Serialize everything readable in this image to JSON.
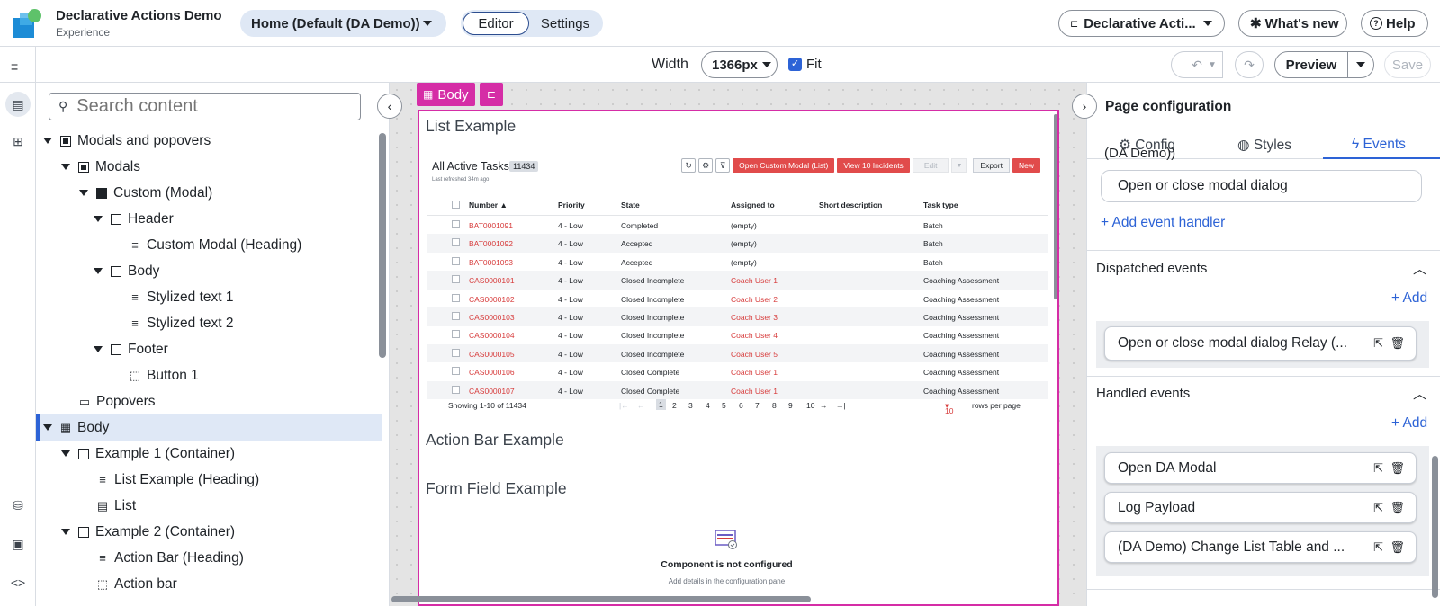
{
  "app": {
    "title": "Declarative Actions Demo",
    "subtitle": "Experience"
  },
  "header": {
    "home_page": "Home",
    "home_page_detail": "(Default (DA Demo))",
    "editor": "Editor",
    "settings": "Settings",
    "variant": "Declarative Acti...",
    "whats_new": "What's new",
    "help": "Help"
  },
  "toolbar": {
    "width_label": "Width",
    "width_value": "1366px",
    "fit_label": "Fit",
    "preview": "Preview",
    "save": "Save"
  },
  "tree": {
    "search_placeholder": "Search content",
    "items": [
      {
        "label": "Modals and popovers",
        "depth": 0,
        "expander": true,
        "icon": "component-icon"
      },
      {
        "label": "Modals",
        "depth": 1,
        "expander": true,
        "icon": "component-icon"
      },
      {
        "label": "Custom (Modal)",
        "depth": 2,
        "expander": true,
        "icon": "modal-icon"
      },
      {
        "label": "Header",
        "depth": 3,
        "expander": true,
        "icon": "container-icon"
      },
      {
        "label": "Custom Modal (Heading)",
        "depth": 4,
        "expander": false,
        "icon": "text-icon"
      },
      {
        "label": "Body",
        "depth": 3,
        "expander": true,
        "icon": "container-icon"
      },
      {
        "label": "Stylized text 1",
        "depth": 4,
        "expander": false,
        "icon": "text-icon"
      },
      {
        "label": "Stylized text 2",
        "depth": 4,
        "expander": false,
        "icon": "text-icon"
      },
      {
        "label": "Footer",
        "depth": 3,
        "expander": true,
        "icon": "container-icon"
      },
      {
        "label": "Button 1",
        "depth": 4,
        "expander": false,
        "icon": "button-icon"
      },
      {
        "label": "Popovers",
        "depth": 1,
        "expander": false,
        "icon": "popover-icon"
      },
      {
        "label": "Body",
        "depth": 0,
        "expander": true,
        "icon": "layout-icon",
        "selected": true
      },
      {
        "label": "Example 1 (Container)",
        "depth": 1,
        "expander": true,
        "icon": "container-icon"
      },
      {
        "label": "List Example (Heading)",
        "depth": 2,
        "expander": false,
        "icon": "text-icon"
      },
      {
        "label": "List",
        "depth": 2,
        "expander": false,
        "icon": "list-icon"
      },
      {
        "label": "Example 2 (Container)",
        "depth": 1,
        "expander": true,
        "icon": "container-icon"
      },
      {
        "label": "Action Bar (Heading)",
        "depth": 2,
        "expander": false,
        "icon": "text-icon"
      },
      {
        "label": "Action bar",
        "depth": 2,
        "expander": false,
        "icon": "button-icon"
      }
    ]
  },
  "canvas": {
    "body_tag": "Body",
    "list_heading": "List Example",
    "list": {
      "title": "All Active Tasks",
      "count": "11434",
      "refreshed": "Last refreshed 34m ago",
      "buttons": [
        "Open Custom Modal (List)",
        "View 10 Incidents",
        "Edit",
        "Export",
        "New"
      ],
      "columns": [
        "Number ▲",
        "Priority",
        "State",
        "Assigned to",
        "Short description",
        "Task type"
      ],
      "rows": [
        [
          "BAT0001091",
          "4 - Low",
          "Completed",
          "(empty)",
          "",
          "Batch"
        ],
        [
          "BAT0001092",
          "4 - Low",
          "Accepted",
          "(empty)",
          "",
          "Batch"
        ],
        [
          "BAT0001093",
          "4 - Low",
          "Accepted",
          "(empty)",
          "",
          "Batch"
        ],
        [
          "CAS0000101",
          "4 - Low",
          "Closed Incomplete",
          "Coach User 1",
          "",
          "Coaching Assessment"
        ],
        [
          "CAS0000102",
          "4 - Low",
          "Closed Incomplete",
          "Coach User 2",
          "",
          "Coaching Assessment"
        ],
        [
          "CAS0000103",
          "4 - Low",
          "Closed Incomplete",
          "Coach User 3",
          "",
          "Coaching Assessment"
        ],
        [
          "CAS0000104",
          "4 - Low",
          "Closed Incomplete",
          "Coach User 4",
          "",
          "Coaching Assessment"
        ],
        [
          "CAS0000105",
          "4 - Low",
          "Closed Incomplete",
          "Coach User 5",
          "",
          "Coaching Assessment"
        ],
        [
          "CAS0000106",
          "4 - Low",
          "Closed Complete",
          "Coach User 1",
          "",
          "Coaching Assessment"
        ],
        [
          "CAS0000107",
          "4 - Low",
          "Closed Complete",
          "Coach User 1",
          "",
          "Coaching Assessment"
        ]
      ],
      "showing": "Showing 1-10 of 11434",
      "pages": [
        "1",
        "2",
        "3",
        "4",
        "5",
        "6",
        "7",
        "8",
        "9",
        "10"
      ],
      "per_page": "10",
      "rows_per_page": "rows per page"
    },
    "action_bar_heading": "Action Bar Example",
    "form_field_heading": "Form Field Example",
    "not_configured": "Component is not configured",
    "not_configured_hint": "Add details in the configuration pane"
  },
  "config": {
    "title": "Page configuration",
    "tabs": [
      "Config",
      "Styles",
      "Events"
    ],
    "active_tab": "Events",
    "partial_text": "(DA Demo))",
    "handler_top": "Open or close modal dialog",
    "add_handler": "+ Add event handler",
    "dispatched_title": "Dispatched events",
    "add": "+ Add",
    "dispatched": [
      "Open or close modal dialog Relay (..."
    ],
    "handled_title": "Handled events",
    "handled": [
      "Open DA Modal",
      "Log Payload",
      "(DA Demo) Change List Table and ..."
    ]
  },
  "colors": {
    "accent": "#2d63d6",
    "selection": "#d52da6",
    "link_red": "#d73b3b"
  }
}
